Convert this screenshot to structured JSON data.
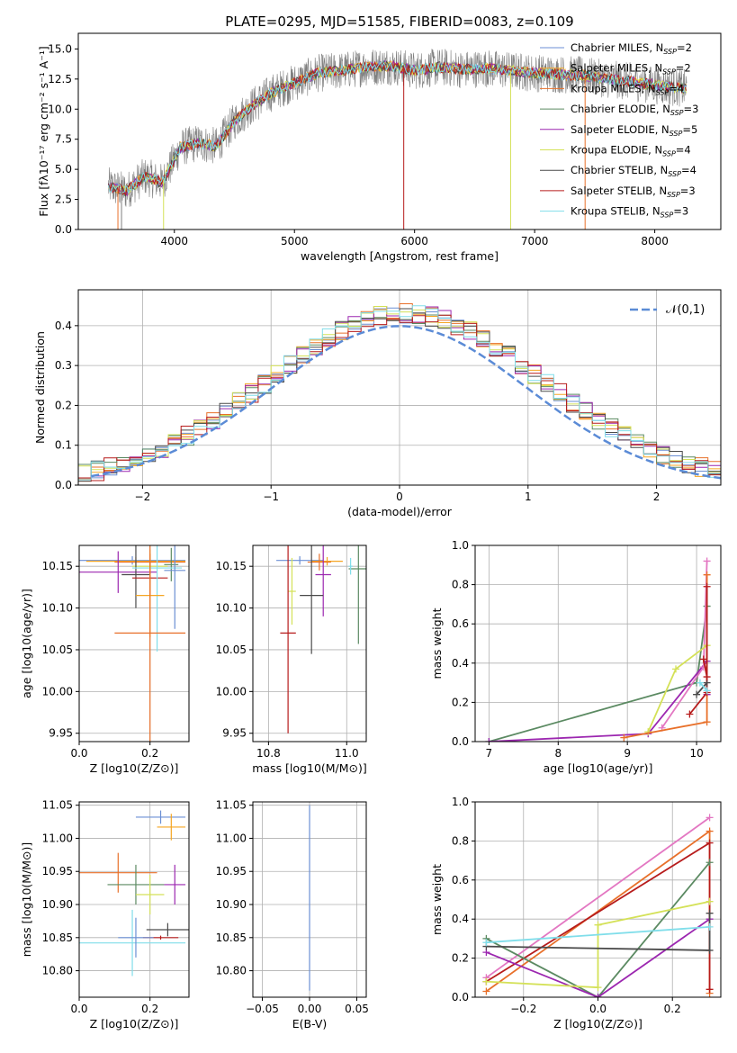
{
  "title": "PLATE=0295, MJD=51585, FIBERID=0083, z=0.109",
  "colors": {
    "series": [
      "#6b8fd4",
      "#f5a623",
      "#e8702a",
      "#5b8a62",
      "#9c27b0",
      "#d4e157",
      "#4a4a4a",
      "#b71c1c",
      "#80deea"
    ],
    "spectrum": "#7f7f7f",
    "grid": "#b0b0b0",
    "gaussian": "#5b8bd6"
  },
  "chart_data": [
    {
      "id": "spectrum",
      "type": "line",
      "xlabel": "wavelength [Angstrom, rest frame]",
      "ylabel": "Flux [f$_\\lambda$10$^{-17}$ erg cm$^{-2}$ s$^{-1}$ A$^{-1}$]",
      "ylabel_text": "Flux [fλ10⁻¹⁷ erg cm⁻² s⁻¹ A⁻¹]",
      "xlim": [
        3200,
        8550
      ],
      "ylim": [
        0,
        16.3
      ],
      "xticks": [
        4000,
        5000,
        6000,
        7000,
        8000
      ],
      "yticks": [
        0.0,
        2.5,
        5.0,
        7.5,
        10.0,
        12.5,
        15.0
      ],
      "grid": false,
      "legend_placement": "top-right",
      "legend": [
        "Chabrier MILES, N_SSP=2",
        "Salpeter MILES, N_SSP=2",
        "Kroupa MILES, N_SSP=4",
        "Chabrier ELODIE, N_SSP=3",
        "Salpeter ELODIE, N_SSP=5",
        "Kroupa ELODIE, N_SSP=4",
        "Chabrier STELIB, N_SSP=4",
        "Salpeter STELIB, N_SSP=3",
        "Kroupa STELIB, N_SSP=3"
      ],
      "continuum_x": [
        3450,
        3600,
        3750,
        3900,
        4050,
        4200,
        4350,
        4500,
        4650,
        4800,
        5000,
        5200,
        5400,
        5600,
        5800,
        6000,
        6200,
        6400,
        6600,
        6800,
        7000,
        7200,
        7400,
        7600,
        7800,
        8000,
        8270
      ],
      "continuum_y": [
        3.6,
        3.2,
        4.4,
        3.9,
        6.8,
        7.2,
        6.9,
        9.0,
        10.3,
        11.3,
        12.2,
        13.0,
        13.2,
        13.5,
        13.6,
        13.2,
        13.5,
        13.3,
        13.4,
        13.2,
        13.0,
        12.9,
        12.8,
        12.5,
        12.3,
        12.0,
        11.7
      ]
    },
    {
      "id": "residuals",
      "type": "bar",
      "xlabel": "(data-model)/error",
      "ylabel": "Normed distribution",
      "xlim": [
        -2.5,
        2.5
      ],
      "ylim": [
        0,
        0.49
      ],
      "xticks": [
        -2,
        -1,
        0,
        1,
        2
      ],
      "yticks": [
        0.0,
        0.1,
        0.2,
        0.3,
        0.4
      ],
      "grid": true,
      "legend_placement": "top-right",
      "legend": [
        "𝒩(0,1)"
      ],
      "bin_edges_start": -2.5,
      "bin_width": 0.1,
      "bin_count": 50,
      "histogram_note": "nine step histograms approximately following N(0,1), peaking near 0.41-0.46"
    },
    {
      "id": "age_vs_Z",
      "type": "scatter",
      "xlabel": "Z [log10(Z/Z⊙)]",
      "ylabel": "age  [log10(age/yr)]",
      "xlim": [
        0.0,
        0.31
      ],
      "ylim": [
        9.94,
        10.175
      ],
      "xticks": [
        0.0,
        0.2
      ],
      "yticks": [
        9.95,
        10.0,
        10.05,
        10.1,
        10.15
      ],
      "grid": true,
      "points": [
        {
          "x": 0.15,
          "y": 10.157,
          "xerr": 0.15,
          "yerr": 0.005
        },
        {
          "x": 0.16,
          "y": 10.156,
          "xerr": 0.14,
          "yerr": 0.005
        },
        {
          "x": 0.2,
          "y": 10.155,
          "xerr": 0.1,
          "yerr": 0.01
        },
        {
          "x": 0.26,
          "y": 10.152,
          "xerr": 0.02,
          "yerr": 0.02
        },
        {
          "x": 0.11,
          "y": 10.143,
          "xerr": 0.11,
          "yerr": 0.025
        },
        {
          "x": 0.2,
          "y": 10.15,
          "xerr": 0.05,
          "yerr": 0.02
        },
        {
          "x": 0.16,
          "y": 10.14,
          "xerr": 0.04,
          "yerr": 0.04
        },
        {
          "x": 0.2,
          "y": 10.136,
          "xerr": 0.05,
          "yerr": 0.02
        },
        {
          "x": 0.22,
          "y": 10.148,
          "xerr": 0.07,
          "yerr": 0.1
        },
        {
          "x": 0.27,
          "y": 10.145,
          "xerr": 0.03,
          "yerr": 0.07
        },
        {
          "x": 0.2,
          "y": 10.115,
          "xerr": 0.04,
          "yerr": 0.05
        },
        {
          "x": 0.2,
          "y": 10.07,
          "xerr": 0.1,
          "yerr": 0.13
        }
      ]
    },
    {
      "id": "age_vs_mass",
      "type": "scatter",
      "xlabel": "mass [log10(M/M⊙)]",
      "ylabel": "",
      "xlim": [
        10.76,
        11.05
      ],
      "ylim": [
        9.94,
        10.175
      ],
      "xticks": [
        10.8,
        11.0
      ],
      "yticks": [
        9.95,
        10.0,
        10.05,
        10.1,
        10.15
      ],
      "grid": true,
      "points": [
        {
          "x": 10.88,
          "y": 10.157,
          "xerr": 0.06,
          "yerr": 0.005
        },
        {
          "x": 10.95,
          "y": 10.156,
          "xerr": 0.04,
          "yerr": 0.005
        },
        {
          "x": 10.93,
          "y": 10.155,
          "xerr": 0.03,
          "yerr": 0.01
        },
        {
          "x": 11.03,
          "y": 10.147,
          "xerr": 0.025,
          "yerr": 0.09
        },
        {
          "x": 10.94,
          "y": 10.14,
          "xerr": 0.02,
          "yerr": 0.05
        },
        {
          "x": 10.86,
          "y": 10.12,
          "xerr": 0.01,
          "yerr": 0.04
        },
        {
          "x": 10.91,
          "y": 10.115,
          "xerr": 0.03,
          "yerr": 0.07
        },
        {
          "x": 10.85,
          "y": 10.07,
          "xerr": 0.02,
          "yerr": 0.12
        },
        {
          "x": 11.01,
          "y": 10.15,
          "xerr": 0.005,
          "yerr": 0.01
        }
      ]
    },
    {
      "id": "weight_vs_age",
      "type": "line",
      "xlabel": "age  [log10(age/yr)]",
      "ylabel": "mass weight",
      "xlim": [
        6.8,
        10.35
      ],
      "ylim": [
        0.0,
        1.0
      ],
      "xticks": [
        7,
        8,
        9,
        10
      ],
      "yticks": [
        0.0,
        0.2,
        0.4,
        0.6,
        0.8,
        1.0
      ],
      "grid": true,
      "series": [
        {
          "x": [
            7.0,
            10.0,
            10.15
          ],
          "y": [
            0.0,
            0.3,
            0.69
          ]
        },
        {
          "x": [
            7.0,
            9.3,
            10.15,
            10.15
          ],
          "y": [
            0.0,
            0.04,
            0.41,
            0.24
          ]
        },
        {
          "x": [
            9.5,
            10.1,
            10.15
          ],
          "y": [
            0.07,
            0.38,
            0.92
          ]
        },
        {
          "x": [
            9.3,
            9.7,
            10.15
          ],
          "y": [
            0.05,
            0.37,
            0.49
          ]
        },
        {
          "x": [
            8.95,
            10.15,
            10.15
          ],
          "y": [
            0.02,
            0.1,
            0.85
          ]
        },
        {
          "x": [
            9.9,
            10.15,
            10.15
          ],
          "y": [
            0.14,
            0.25,
            0.79
          ]
        },
        {
          "x": [
            10.0,
            10.15
          ],
          "y": [
            0.24,
            0.3
          ]
        },
        {
          "x": [
            10.05,
            10.15
          ],
          "y": [
            0.3,
            0.26
          ]
        },
        {
          "x": [
            10.1,
            10.15
          ],
          "y": [
            0.42,
            0.33
          ]
        }
      ]
    },
    {
      "id": "mass_vs_Z",
      "type": "scatter",
      "xlabel": "Z [log10(Z/Z⊙)]",
      "ylabel": "mass [log10(M/M⊙)]",
      "xlim": [
        0.0,
        0.31
      ],
      "ylim": [
        10.76,
        11.055
      ],
      "xticks": [
        0.0,
        0.2
      ],
      "yticks": [
        10.8,
        10.85,
        10.9,
        10.95,
        11.0,
        11.05
      ],
      "grid": true,
      "points": [
        {
          "x": 0.23,
          "y": 11.032,
          "xerr": 0.07,
          "yerr": 0.01
        },
        {
          "x": 0.26,
          "y": 11.017,
          "xerr": 0.04,
          "yerr": 0.02
        },
        {
          "x": 0.11,
          "y": 10.948,
          "xerr": 0.11,
          "yerr": 0.03
        },
        {
          "x": 0.16,
          "y": 10.93,
          "xerr": 0.08,
          "yerr": 0.03
        },
        {
          "x": 0.27,
          "y": 10.93,
          "xerr": 0.03,
          "yerr": 0.03
        },
        {
          "x": 0.2,
          "y": 10.915,
          "xerr": 0.04,
          "yerr": 0.03
        },
        {
          "x": 0.25,
          "y": 10.862,
          "xerr": 0.06,
          "yerr": 0.01
        },
        {
          "x": 0.23,
          "y": 10.85,
          "xerr": 0.05,
          "yerr": 0.003
        },
        {
          "x": 0.15,
          "y": 10.842,
          "xerr": 0.15,
          "yerr": 0.05
        },
        {
          "x": 0.16,
          "y": 10.85,
          "xerr": 0.05,
          "yerr": 0.03
        }
      ]
    },
    {
      "id": "mass_vs_EBV",
      "type": "scatter",
      "xlabel": "E(B-V)",
      "ylabel": "",
      "xlim": [
        -0.06,
        0.06
      ],
      "ylim": [
        10.76,
        11.055
      ],
      "xticks": [
        -0.05,
        0.0,
        0.05
      ],
      "yticks": [
        10.8,
        10.85,
        10.9,
        10.95,
        11.0,
        11.05
      ],
      "grid": true,
      "points": [
        {
          "x": 0.0,
          "y": 10.91,
          "xerr": 0.0,
          "yerr": 0.14
        }
      ]
    },
    {
      "id": "weight_vs_Z",
      "type": "line",
      "xlabel": "Z [log10(Z/Z⊙)]",
      "ylabel": "mass weight",
      "xlim": [
        -0.33,
        0.33
      ],
      "ylim": [
        0.0,
        1.0
      ],
      "xticks": [
        -0.2,
        0.0,
        0.2
      ],
      "yticks": [
        0.0,
        0.2,
        0.4,
        0.6,
        0.8,
        1.0
      ],
      "grid": true,
      "series": [
        {
          "x": [
            -0.3,
            0.3
          ],
          "y": [
            0.1,
            0.92
          ]
        },
        {
          "x": [
            -0.3,
            0.3,
            0.3
          ],
          "y": [
            0.03,
            0.85,
            0.02
          ]
        },
        {
          "x": [
            -0.3,
            0.3,
            0.3
          ],
          "y": [
            0.08,
            0.79,
            0.04
          ]
        },
        {
          "x": [
            -0.3,
            0.0,
            0.3
          ],
          "y": [
            0.3,
            0.0,
            0.69
          ]
        },
        {
          "x": [
            -0.3,
            0.0,
            0.3
          ],
          "y": [
            0.23,
            0.0,
            0.4
          ]
        },
        {
          "x": [
            -0.3,
            0.0,
            0.0,
            0.3
          ],
          "y": [
            0.08,
            0.05,
            0.37,
            0.49
          ]
        },
        {
          "x": [
            -0.3,
            0.3,
            0.3
          ],
          "y": [
            0.26,
            0.24,
            0.43
          ]
        },
        {
          "x": [
            -0.3,
            0.3
          ],
          "y": [
            0.28,
            0.36
          ]
        }
      ]
    }
  ]
}
